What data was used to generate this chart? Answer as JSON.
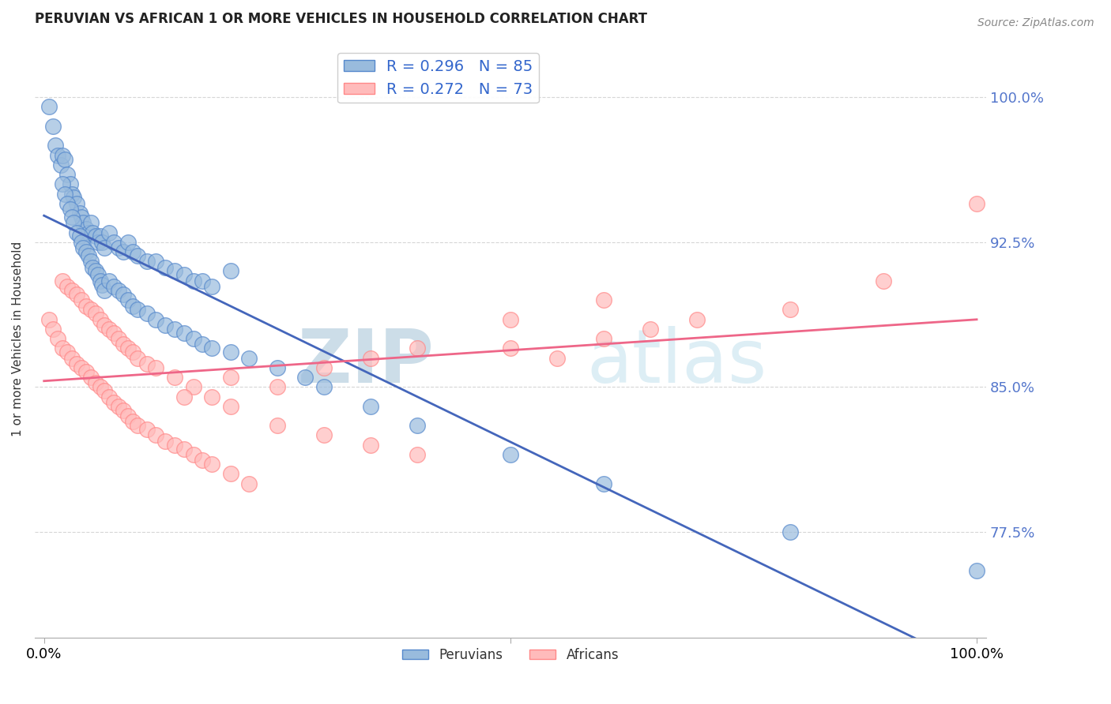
{
  "title": "PERUVIAN VS AFRICAN 1 OR MORE VEHICLES IN HOUSEHOLD CORRELATION CHART",
  "ylabel": "1 or more Vehicles in Household",
  "source": "Source: ZipAtlas.com",
  "xlim": [
    -1.0,
    101.0
  ],
  "ylim": [
    72.0,
    103.0
  ],
  "yticks": [
    77.5,
    85.0,
    92.5,
    100.0
  ],
  "ytick_labels": [
    "77.5%",
    "85.0%",
    "92.5%",
    "100.0%"
  ],
  "xticks": [
    0.0,
    50.0,
    100.0
  ],
  "xtick_labels": [
    "0.0%",
    "",
    "100.0%"
  ],
  "r_blue": 0.296,
  "n_blue": 85,
  "r_pink": 0.272,
  "n_pink": 73,
  "blue_scatter_color": "#99BBDD",
  "blue_edge_color": "#5588CC",
  "pink_scatter_color": "#FFBBBB",
  "pink_edge_color": "#FF8888",
  "blue_line_color": "#4466BB",
  "pink_line_color": "#EE6688",
  "watermark_color": "#CCDDE8",
  "peruvians_x": [
    0.5,
    1.0,
    1.2,
    1.5,
    1.8,
    2.0,
    2.2,
    2.5,
    2.8,
    3.0,
    3.2,
    3.5,
    3.8,
    4.0,
    4.2,
    4.5,
    4.8,
    5.0,
    5.2,
    5.5,
    5.8,
    6.0,
    6.2,
    6.5,
    7.0,
    7.5,
    8.0,
    8.5,
    9.0,
    9.5,
    10.0,
    11.0,
    12.0,
    13.0,
    14.0,
    15.0,
    16.0,
    17.0,
    18.0,
    20.0,
    2.0,
    2.2,
    2.5,
    2.8,
    3.0,
    3.2,
    3.5,
    3.8,
    4.0,
    4.2,
    4.5,
    4.8,
    5.0,
    5.2,
    5.5,
    5.8,
    6.0,
    6.2,
    6.5,
    7.0,
    7.5,
    8.0,
    8.5,
    9.0,
    9.5,
    10.0,
    11.0,
    12.0,
    13.0,
    14.0,
    15.0,
    16.0,
    17.0,
    18.0,
    20.0,
    22.0,
    25.0,
    28.0,
    30.0,
    35.0,
    40.0,
    50.0,
    60.0,
    80.0,
    100.0
  ],
  "peruvians_y": [
    99.5,
    98.5,
    97.5,
    97.0,
    96.5,
    97.0,
    96.8,
    96.0,
    95.5,
    95.0,
    94.8,
    94.5,
    94.0,
    93.8,
    93.5,
    93.2,
    93.0,
    93.5,
    93.0,
    92.8,
    92.5,
    92.8,
    92.5,
    92.2,
    93.0,
    92.5,
    92.2,
    92.0,
    92.5,
    92.0,
    91.8,
    91.5,
    91.5,
    91.2,
    91.0,
    90.8,
    90.5,
    90.5,
    90.2,
    91.0,
    95.5,
    95.0,
    94.5,
    94.2,
    93.8,
    93.5,
    93.0,
    92.8,
    92.5,
    92.2,
    92.0,
    91.8,
    91.5,
    91.2,
    91.0,
    90.8,
    90.5,
    90.3,
    90.0,
    90.5,
    90.2,
    90.0,
    89.8,
    89.5,
    89.2,
    89.0,
    88.8,
    88.5,
    88.2,
    88.0,
    87.8,
    87.5,
    87.2,
    87.0,
    86.8,
    86.5,
    86.0,
    85.5,
    85.0,
    84.0,
    83.0,
    81.5,
    80.0,
    77.5,
    75.5
  ],
  "africans_x": [
    0.5,
    1.0,
    1.5,
    2.0,
    2.5,
    3.0,
    3.5,
    4.0,
    4.5,
    5.0,
    5.5,
    6.0,
    6.5,
    7.0,
    7.5,
    8.0,
    8.5,
    9.0,
    9.5,
    10.0,
    11.0,
    12.0,
    13.0,
    14.0,
    15.0,
    16.0,
    17.0,
    18.0,
    20.0,
    22.0,
    2.0,
    2.5,
    3.0,
    3.5,
    4.0,
    4.5,
    5.0,
    5.5,
    6.0,
    6.5,
    7.0,
    7.5,
    8.0,
    8.5,
    9.0,
    9.5,
    10.0,
    11.0,
    12.0,
    14.0,
    16.0,
    18.0,
    20.0,
    25.0,
    30.0,
    35.0,
    40.0,
    50.0,
    55.0,
    60.0,
    65.0,
    70.0,
    80.0,
    90.0,
    100.0,
    15.0,
    20.0,
    25.0,
    30.0,
    35.0,
    40.0,
    50.0,
    60.0
  ],
  "africans_y": [
    88.5,
    88.0,
    87.5,
    87.0,
    86.8,
    86.5,
    86.2,
    86.0,
    85.8,
    85.5,
    85.2,
    85.0,
    84.8,
    84.5,
    84.2,
    84.0,
    83.8,
    83.5,
    83.2,
    83.0,
    82.8,
    82.5,
    82.2,
    82.0,
    81.8,
    81.5,
    81.2,
    81.0,
    80.5,
    80.0,
    90.5,
    90.2,
    90.0,
    89.8,
    89.5,
    89.2,
    89.0,
    88.8,
    88.5,
    88.2,
    88.0,
    87.8,
    87.5,
    87.2,
    87.0,
    86.8,
    86.5,
    86.2,
    86.0,
    85.5,
    85.0,
    84.5,
    84.0,
    83.0,
    82.5,
    82.0,
    81.5,
    87.0,
    86.5,
    87.5,
    88.0,
    88.5,
    89.0,
    90.5,
    94.5,
    84.5,
    85.5,
    85.0,
    86.0,
    86.5,
    87.0,
    88.5,
    89.5
  ]
}
